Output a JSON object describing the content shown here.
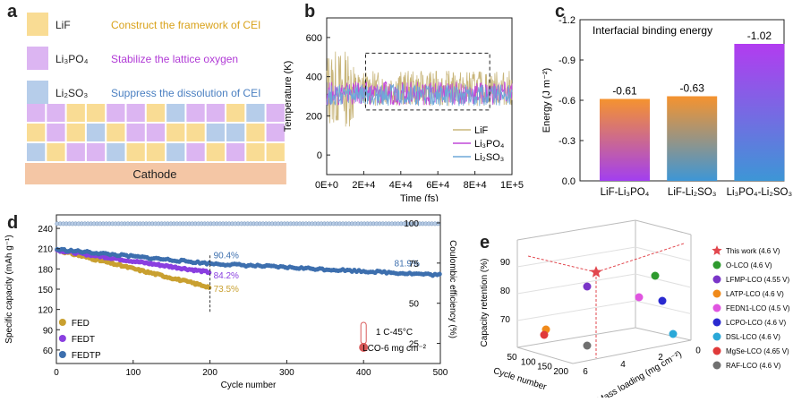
{
  "panels": {
    "a": "a",
    "b": "b",
    "c": "c",
    "d": "d",
    "e": "e"
  },
  "panel_a": {
    "legend": [
      {
        "label": "LiF",
        "desc": "Construct the framework of CEI",
        "color": "#f9dc94",
        "text_color": "#d9a21b"
      },
      {
        "label": "Li₃PO₄",
        "desc": "Stabilize the lattice oxygen",
        "color": "#dcb5f2",
        "text_color": "#b13bd6"
      },
      {
        "label": "Li₂SO₃",
        "desc": "Suppress the dissolution of CEI",
        "color": "#b6cdea",
        "text_color": "#4a7fc1"
      }
    ],
    "cathode_label": "Cathode",
    "cathode_color": "#f4c6a5"
  },
  "chart_data": [
    {
      "id": "b",
      "type": "line",
      "xlabel": "Time (fs)",
      "ylabel": "Temperature (K)",
      "xlim": [
        0,
        100000
      ],
      "ylim": [
        -100,
        700
      ],
      "xticks": [
        "0E+0",
        "2E+4",
        "4E+4",
        "6E+4",
        "8E+4",
        "1E+5"
      ],
      "yticks": [
        "0",
        "200",
        "400",
        "600"
      ],
      "series": [
        {
          "name": "LiF",
          "color": "#c8b57a",
          "mean": 340,
          "amplitude": 90
        },
        {
          "name": "Li₃PO₄",
          "color": "#c048d8",
          "mean": 315,
          "amplitude": 60
        },
        {
          "name": "Li₂SO₃",
          "color": "#6ea8d8",
          "mean": 305,
          "amplitude": 55
        }
      ],
      "annotation": "dashed box 2E+4 to 9E+4, 230 to 520 K"
    },
    {
      "id": "c",
      "type": "bar",
      "title": "Interfacial binding energy",
      "ylabel": "Energy (J m⁻²)",
      "categories": [
        "LiF-Li₃PO₄",
        "LiF-Li₂SO₃",
        "Li₃PO₄-Li₂SO₃"
      ],
      "values": [
        -0.61,
        -0.63,
        -1.02
      ],
      "value_labels": [
        "-0.61",
        "-0.63",
        "-1.02"
      ],
      "ylim": [
        0,
        -1.2
      ],
      "yticks": [
        "0.0",
        "-0.3",
        "-0.6",
        "-0.9",
        "-1.2"
      ],
      "bar_gradients": [
        [
          "#f5932f",
          "#a23ff0"
        ],
        [
          "#f5932f",
          "#3d96d6"
        ],
        [
          "#b23cf0",
          "#3d96d6"
        ]
      ]
    },
    {
      "id": "d",
      "type": "line",
      "xlabel": "Cycle number",
      "ylabel": "Specific capacity (mAh g⁻¹)",
      "y2label": "Coulombic efficiency (%)",
      "xlim": [
        0,
        500
      ],
      "ylim": [
        40,
        260
      ],
      "y2lim": [
        12.5,
        105
      ],
      "xticks": [
        "0",
        "100",
        "200",
        "300",
        "400",
        "500"
      ],
      "yticks": [
        "60",
        "90",
        "120",
        "150",
        "180",
        "210",
        "240"
      ],
      "y2ticks": [
        "25",
        "50",
        "75",
        "100"
      ],
      "series": [
        {
          "name": "FED",
          "color": "#c9a030",
          "start": 208,
          "end_cycle": 200,
          "end": 153
        },
        {
          "name": "FEDT",
          "color": "#8a3fe0",
          "start": 208,
          "end_cycle": 200,
          "end": 175
        },
        {
          "name": "FEDTP",
          "color": "#3d6fae",
          "start": 209,
          "end_cycle": 500,
          "end": 171,
          "at200": 188
        }
      ],
      "annotations": [
        {
          "text": "90.4%",
          "color": "#3d6fae"
        },
        {
          "text": "84.2%",
          "color": "#8a3fe0"
        },
        {
          "text": "73.5%",
          "color": "#c9a030"
        },
        {
          "text": "81.9%",
          "color": "#3d6fae"
        }
      ],
      "conditions": [
        "1 C-45°C",
        "LCO-6 mg cm⁻²"
      ]
    },
    {
      "id": "e",
      "type": "scatter",
      "xlabel": "Cycle number",
      "ylabel": "Capacity retention (%)",
      "zlabel": "Mass loading (mg cm⁻²)",
      "yticks": [
        "70",
        "80",
        "90"
      ],
      "xticks": [
        "50",
        "100",
        "150",
        "200"
      ],
      "zticks": [
        "0",
        "2",
        "4",
        "6"
      ],
      "series": [
        {
          "name": "This work (4.6 V)",
          "color": "#e2474e",
          "marker": "star"
        },
        {
          "name": "O-LCO (4.6 V)",
          "color": "#2e9a2e"
        },
        {
          "name": "LFMP-LCO (4.55 V)",
          "color": "#7a35c8"
        },
        {
          "name": "LATP-LCO (4.6 V)",
          "color": "#f08a1a"
        },
        {
          "name": "FEDN1-LCO (4.5 V)",
          "color": "#e055e0"
        },
        {
          "name": "LCPO-LCO (4.6 V)",
          "color": "#2a2ad0"
        },
        {
          "name": "DSL-LCO (4.6 V)",
          "color": "#2aa8d8"
        },
        {
          "name": "MgSe-LCO (4.65 V)",
          "color": "#e03a3a"
        },
        {
          "name": "RAF-LCO (4.6 V)",
          "color": "#707070"
        }
      ]
    }
  ]
}
